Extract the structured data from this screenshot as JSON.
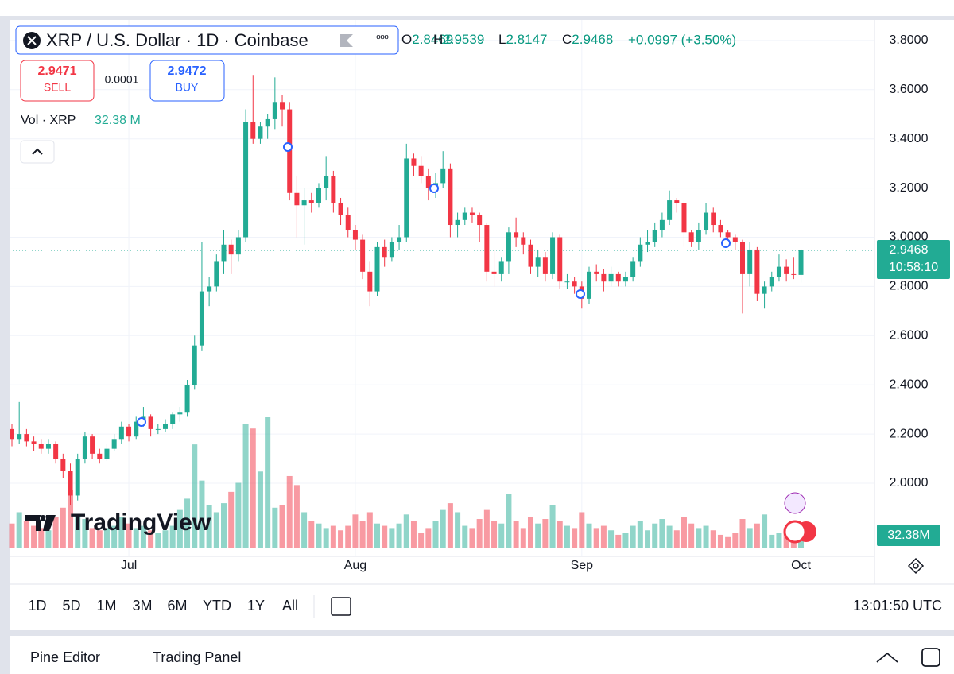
{
  "header": {
    "symbol": "XRP / U.S. Dollar · 1D · Coinbase",
    "more": "ººº",
    "o": "O",
    "h": "H",
    "l": "L",
    "c": "C",
    "change": "+0.0997 (+3.50%)"
  },
  "trade": {
    "sell_price": 2.9471,
    "sell": "SELL",
    "spread": 0.0001,
    "buy_price": 2.9472,
    "buy": "BUY"
  },
  "volume_legend": {
    "label": "Vol · XRP",
    "value": "32.38 M"
  },
  "price_label": {
    "price": 2.9468,
    "countdown": "10:58:10"
  },
  "volume_label": "32.38M",
  "logo": "TradingView",
  "ranges": [
    "1D",
    "5D",
    "1M",
    "3M",
    "6M",
    "YTD",
    "1Y",
    "All"
  ],
  "clock": "13:01:50 UTC",
  "panel": {
    "tabs": [
      "Pine Editor",
      "Trading Panel"
    ]
  },
  "chart_data": {
    "type": "candlestick",
    "up_color": "#22ab94",
    "down_color": "#f23645",
    "grid": true,
    "ylim": [
      1.735,
      3.874
    ],
    "yticks": [
      {
        "value": 2.0,
        "label": "2.0000"
      },
      {
        "value": 2.2,
        "label": "2.2000"
      },
      {
        "value": 2.4,
        "label": "2.4000"
      },
      {
        "value": 2.6,
        "label": "2.6000"
      },
      {
        "value": 2.8,
        "label": "2.8000"
      },
      {
        "value": 3.0,
        "label": "3.0000"
      },
      {
        "value": 3.2,
        "label": "3.2000"
      },
      {
        "value": 3.4,
        "label": "3.4000"
      },
      {
        "value": 3.6,
        "label": "3.6000"
      },
      {
        "value": 3.8,
        "label": "3.8000"
      }
    ],
    "xticks": [
      {
        "value": 16,
        "label": "Jul"
      },
      {
        "value": 47,
        "label": "Aug"
      },
      {
        "value": 78,
        "label": "Sep"
      },
      {
        "value": 108,
        "label": "Oct"
      }
    ],
    "candles": [
      [
        2.22,
        2.24,
        2.15,
        2.18
      ],
      [
        2.18,
        2.33,
        2.16,
        2.2
      ],
      [
        2.2,
        2.22,
        2.15,
        2.17
      ],
      [
        2.17,
        2.19,
        2.13,
        2.16
      ],
      [
        2.16,
        2.18,
        2.12,
        2.14
      ],
      [
        2.14,
        2.18,
        2.12,
        2.16
      ],
      [
        2.16,
        2.17,
        2.08,
        2.1
      ],
      [
        2.1,
        2.12,
        2.02,
        2.05
      ],
      [
        2.05,
        2.08,
        1.91,
        1.95
      ],
      [
        1.95,
        2.12,
        1.93,
        2.1
      ],
      [
        2.1,
        2.21,
        2.08,
        2.19
      ],
      [
        2.19,
        2.2,
        2.1,
        2.12
      ],
      [
        2.12,
        2.14,
        2.08,
        2.1
      ],
      [
        2.1,
        2.16,
        2.09,
        2.14
      ],
      [
        2.14,
        2.2,
        2.13,
        2.18
      ],
      [
        2.18,
        2.25,
        2.16,
        2.23
      ],
      [
        2.23,
        2.24,
        2.17,
        2.19
      ],
      [
        2.19,
        2.27,
        2.18,
        2.25
      ],
      [
        2.25,
        2.31,
        2.23,
        2.27
      ],
      [
        2.27,
        2.28,
        2.19,
        2.22
      ],
      [
        2.22,
        2.24,
        2.2,
        2.22
      ],
      [
        2.22,
        2.26,
        2.21,
        2.24
      ],
      [
        2.24,
        2.29,
        2.22,
        2.28
      ],
      [
        2.28,
        2.31,
        2.25,
        2.29
      ],
      [
        2.29,
        2.42,
        2.27,
        2.4
      ],
      [
        2.4,
        2.6,
        2.38,
        2.56
      ],
      [
        2.56,
        2.98,
        2.54,
        2.78
      ],
      [
        2.78,
        2.84,
        2.72,
        2.8
      ],
      [
        2.8,
        2.93,
        2.78,
        2.9
      ],
      [
        2.9,
        3.03,
        2.85,
        2.97
      ],
      [
        2.97,
        2.99,
        2.85,
        2.93
      ],
      [
        2.93,
        3.03,
        2.9,
        3.0
      ],
      [
        3.0,
        3.52,
        2.98,
        3.47
      ],
      [
        3.47,
        3.66,
        3.38,
        3.4
      ],
      [
        3.4,
        3.47,
        3.38,
        3.45
      ],
      [
        3.45,
        3.5,
        3.4,
        3.48
      ],
      [
        3.48,
        3.65,
        3.44,
        3.55
      ],
      [
        3.55,
        3.58,
        3.45,
        3.52
      ],
      [
        3.52,
        3.55,
        3.15,
        3.18
      ],
      [
        3.18,
        3.25,
        3.0,
        3.13
      ],
      [
        3.13,
        3.2,
        2.97,
        3.15
      ],
      [
        3.15,
        3.18,
        3.1,
        3.14
      ],
      [
        3.14,
        3.22,
        3.12,
        3.2
      ],
      [
        3.2,
        3.33,
        3.15,
        3.25
      ],
      [
        3.25,
        3.27,
        3.1,
        3.14
      ],
      [
        3.14,
        3.16,
        3.05,
        3.09
      ],
      [
        3.09,
        3.12,
        3.0,
        3.03
      ],
      [
        3.03,
        3.05,
        2.95,
        2.99
      ],
      [
        2.99,
        3.01,
        2.83,
        2.86
      ],
      [
        2.86,
        2.9,
        2.72,
        2.78
      ],
      [
        2.78,
        2.98,
        2.76,
        2.96
      ],
      [
        2.96,
        2.99,
        2.88,
        2.92
      ],
      [
        2.92,
        3.0,
        2.9,
        2.98
      ],
      [
        2.98,
        3.05,
        2.95,
        3.0
      ],
      [
        3.0,
        3.38,
        2.98,
        3.32
      ],
      [
        3.32,
        3.34,
        3.25,
        3.29
      ],
      [
        3.29,
        3.33,
        3.22,
        3.25
      ],
      [
        3.25,
        3.28,
        3.15,
        3.2
      ],
      [
        3.2,
        3.26,
        3.16,
        3.22
      ],
      [
        3.22,
        3.35,
        3.2,
        3.28
      ],
      [
        3.28,
        3.3,
        3.0,
        3.05
      ],
      [
        3.05,
        3.1,
        3.0,
        3.07
      ],
      [
        3.07,
        3.12,
        3.05,
        3.1
      ],
      [
        3.1,
        3.12,
        3.06,
        3.09
      ],
      [
        3.09,
        3.1,
        2.98,
        3.05
      ],
      [
        3.05,
        3.06,
        2.82,
        2.86
      ],
      [
        2.86,
        2.95,
        2.8,
        2.85
      ],
      [
        2.85,
        2.92,
        2.82,
        2.9
      ],
      [
        2.9,
        3.04,
        2.85,
        3.02
      ],
      [
        3.02,
        3.08,
        2.96,
        3.0
      ],
      [
        3.0,
        3.02,
        2.93,
        2.97
      ],
      [
        2.97,
        2.99,
        2.85,
        2.88
      ],
      [
        2.88,
        2.95,
        2.84,
        2.92
      ],
      [
        2.92,
        2.94,
        2.82,
        2.85
      ],
      [
        2.85,
        3.02,
        2.83,
        3.0
      ],
      [
        3.0,
        3.01,
        2.79,
        2.82
      ],
      [
        2.82,
        2.85,
        2.79,
        2.82
      ],
      [
        2.82,
        2.84,
        2.77,
        2.8
      ],
      [
        2.8,
        2.82,
        2.71,
        2.75
      ],
      [
        2.75,
        2.88,
        2.73,
        2.86
      ],
      [
        2.86,
        2.89,
        2.82,
        2.85
      ],
      [
        2.85,
        2.87,
        2.78,
        2.82
      ],
      [
        2.82,
        2.88,
        2.8,
        2.85
      ],
      [
        2.85,
        2.86,
        2.8,
        2.82
      ],
      [
        2.82,
        2.86,
        2.8,
        2.84
      ],
      [
        2.84,
        2.92,
        2.82,
        2.9
      ],
      [
        2.9,
        3.0,
        2.88,
        2.97
      ],
      [
        2.97,
        3.03,
        2.94,
        2.98
      ],
      [
        2.98,
        3.06,
        2.96,
        3.03
      ],
      [
        3.03,
        3.1,
        3.0,
        3.07
      ],
      [
        3.07,
        3.19,
        3.05,
        3.15
      ],
      [
        3.15,
        3.16,
        3.1,
        3.14
      ],
      [
        3.14,
        3.15,
        2.96,
        3.02
      ],
      [
        3.02,
        3.03,
        2.96,
        2.98
      ],
      [
        2.98,
        3.06,
        2.95,
        3.03
      ],
      [
        3.03,
        3.14,
        3.01,
        3.1
      ],
      [
        3.1,
        3.12,
        3.02,
        3.05
      ],
      [
        3.05,
        3.07,
        3.0,
        3.02
      ],
      [
        3.02,
        3.03,
        2.98,
        3.0
      ],
      [
        3.0,
        3.01,
        2.95,
        2.98
      ],
      [
        2.98,
        2.99,
        2.69,
        2.85
      ],
      [
        2.85,
        2.98,
        2.8,
        2.95
      ],
      [
        2.95,
        2.96,
        2.74,
        2.77
      ],
      [
        2.77,
        2.82,
        2.71,
        2.8
      ],
      [
        2.8,
        2.86,
        2.78,
        2.84
      ],
      [
        2.84,
        2.93,
        2.82,
        2.88
      ],
      [
        2.88,
        2.91,
        2.82,
        2.85
      ],
      [
        2.85,
        2.92,
        2.83,
        2.8471
      ],
      [
        2.8469,
        2.9539,
        2.8147,
        2.9468
      ]
    ],
    "volume": [
      55,
      80,
      60,
      50,
      45,
      40,
      70,
      90,
      130,
      75,
      65,
      45,
      40,
      45,
      50,
      70,
      55,
      45,
      50,
      40,
      35,
      40,
      50,
      85,
      110,
      230,
      150,
      95,
      80,
      100,
      125,
      145,
      275,
      265,
      170,
      290,
      90,
      95,
      160,
      140,
      80,
      60,
      55,
      45,
      50,
      40,
      50,
      75,
      60,
      80,
      55,
      50,
      45,
      55,
      75,
      60,
      35,
      45,
      60,
      85,
      100,
      80,
      50,
      45,
      65,
      85,
      60,
      55,
      120,
      60,
      45,
      70,
      55,
      65,
      95,
      60,
      50,
      45,
      80,
      55,
      45,
      50,
      40,
      30,
      35,
      50,
      60,
      40,
      55,
      65,
      50,
      40,
      70,
      55,
      45,
      50,
      40,
      30,
      25,
      35,
      65,
      45,
      55,
      75,
      30,
      35,
      45,
      40,
      32.38
    ]
  }
}
